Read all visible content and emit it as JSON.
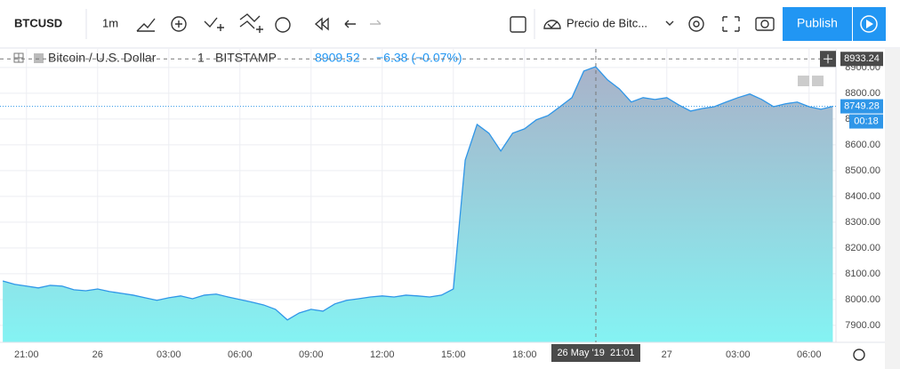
{
  "toolbar": {
    "symbol": "BTCUSD",
    "interval": "1m",
    "compare": "Precio de Bitc...",
    "publish": "Publish"
  },
  "legend": {
    "name": "Bitcoin / U.S. Dollar",
    "interval": "1",
    "exchange": "BITSTAMP",
    "price": "8909.52",
    "change": "−6.38 (−0.07%)"
  },
  "chart_data": {
    "type": "area",
    "color": "#2f96e8",
    "x": [
      "2019-05-25 20:00",
      "2019-05-25 20:30",
      "2019-05-25 21:00",
      "2019-05-25 21:30",
      "2019-05-25 22:00",
      "2019-05-25 22:30",
      "2019-05-25 23:00",
      "2019-05-25 23:30",
      "2019-05-26 00:00",
      "2019-05-26 00:30",
      "2019-05-26 01:00",
      "2019-05-26 01:30",
      "2019-05-26 02:00",
      "2019-05-26 02:30",
      "2019-05-26 03:00",
      "2019-05-26 03:30",
      "2019-05-26 04:00",
      "2019-05-26 04:30",
      "2019-05-26 05:00",
      "2019-05-26 05:30",
      "2019-05-26 06:00",
      "2019-05-26 06:30",
      "2019-05-26 07:00",
      "2019-05-26 07:30",
      "2019-05-26 08:00",
      "2019-05-26 08:30",
      "2019-05-26 09:00",
      "2019-05-26 09:30",
      "2019-05-26 10:00",
      "2019-05-26 10:30",
      "2019-05-26 11:00",
      "2019-05-26 11:30",
      "2019-05-26 12:00",
      "2019-05-26 12:30",
      "2019-05-26 13:00",
      "2019-05-26 13:30",
      "2019-05-26 14:00",
      "2019-05-26 14:30",
      "2019-05-26 15:00",
      "2019-05-26 15:30",
      "2019-05-26 16:00",
      "2019-05-26 16:30",
      "2019-05-26 17:00",
      "2019-05-26 17:30",
      "2019-05-26 18:00",
      "2019-05-26 18:30",
      "2019-05-26 19:00",
      "2019-05-26 19:30",
      "2019-05-26 20:00",
      "2019-05-26 20:30",
      "2019-05-26 21:00",
      "2019-05-26 21:30",
      "2019-05-26 22:00",
      "2019-05-26 22:30",
      "2019-05-26 23:00",
      "2019-05-26 23:30",
      "2019-05-27 00:00",
      "2019-05-27 00:30",
      "2019-05-27 01:00",
      "2019-05-27 01:30",
      "2019-05-27 02:00",
      "2019-05-27 02:30",
      "2019-05-27 03:00",
      "2019-05-27 03:30",
      "2019-05-27 04:00",
      "2019-05-27 04:30",
      "2019-05-27 05:00",
      "2019-05-27 05:30",
      "2019-05-27 06:00",
      "2019-05-27 06:30",
      "2019-05-27 07:00"
    ],
    "values": [
      8072,
      8059,
      8052,
      8045,
      8055,
      8052,
      8038,
      8034,
      8041,
      8031,
      8024,
      8017,
      8007,
      7997,
      8007,
      8014,
      8003,
      8017,
      8021,
      8010,
      8000,
      7990,
      7979,
      7962,
      7921,
      7948,
      7962,
      7955,
      7983,
      7997,
      8003,
      8010,
      8014,
      8010,
      8017,
      8014,
      8010,
      8017,
      8041,
      8541,
      8679,
      8645,
      8576,
      8645,
      8662,
      8697,
      8714,
      8748,
      8783,
      8886,
      8903,
      8852,
      8817,
      8766,
      8783,
      8776,
      8783,
      8755,
      8731,
      8741,
      8748,
      8766,
      8783,
      8797,
      8776,
      8748,
      8759,
      8766,
      8748,
      8738,
      8749
    ],
    "xlim": [
      "2019-05-25 19:53",
      "2019-05-27 07:08"
    ],
    "xticks": [
      {
        "value": "2019-05-25 21:00",
        "label": "21:00"
      },
      {
        "value": "2019-05-26 00:00",
        "label": "26"
      },
      {
        "value": "2019-05-26 03:00",
        "label": "03:00"
      },
      {
        "value": "2019-05-26 06:00",
        "label": "06:00"
      },
      {
        "value": "2019-05-26 09:00",
        "label": "09:00"
      },
      {
        "value": "2019-05-26 12:00",
        "label": "12:00"
      },
      {
        "value": "2019-05-26 15:00",
        "label": "15:00"
      },
      {
        "value": "2019-05-26 18:00",
        "label": "18:00"
      },
      {
        "value": "2019-05-26 21:00",
        "label": "21:00"
      },
      {
        "value": "2019-05-27 00:00",
        "label": "27"
      },
      {
        "value": "2019-05-27 03:00",
        "label": "03:00"
      },
      {
        "value": "2019-05-27 06:00",
        "label": "06:00"
      }
    ],
    "ylim": [
      7834,
      8972
    ],
    "yticks": [
      {
        "value": 7900,
        "label": "7900.00"
      },
      {
        "value": 8000,
        "label": "8000.00"
      },
      {
        "value": 8100,
        "label": "8100.00"
      },
      {
        "value": 8200,
        "label": "8200.00"
      },
      {
        "value": 8300,
        "label": "8300.00"
      },
      {
        "value": 8400,
        "label": "8400.00"
      },
      {
        "value": 8500,
        "label": "8500.00"
      },
      {
        "value": 8600,
        "label": "8600.00"
      },
      {
        "value": 8700,
        "label": "8700.00"
      },
      {
        "value": 8800,
        "label": "8800.00"
      },
      {
        "value": 8900,
        "label": "8900.00"
      }
    ],
    "grid": true,
    "last_price": 8749.28,
    "countdown": "00:18",
    "crosshair": {
      "price": 8933.24,
      "time_label": "26 May '19  21:01"
    }
  }
}
